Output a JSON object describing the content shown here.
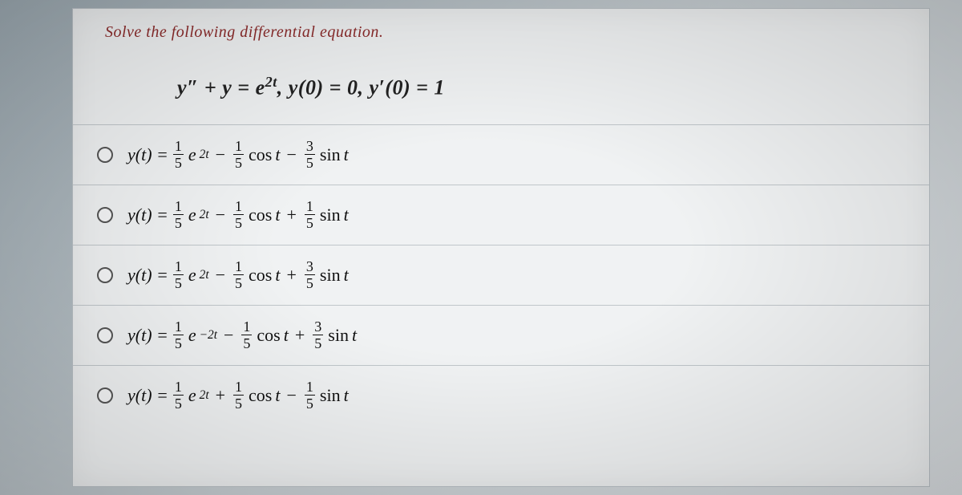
{
  "prompt": {
    "text": "Solve the following differential equation.",
    "color": "#8c2b2b",
    "font_style": "italic",
    "font_family": "Times New Roman",
    "font_size_pt": 15
  },
  "equation": {
    "latex": "y'' + y = e^{2t},   y(0) = 0,   y'(0) = 1",
    "parts": {
      "lhs": "y″ + y = e",
      "exp": "2t",
      "comma1": ",    y(0) = 0,    y′(0) = 1"
    },
    "font_size_pt": 20,
    "font_weight": "bold",
    "color": "#222222"
  },
  "options": [
    {
      "lead": "y(t) = ",
      "terms": [
        {
          "coef_num": "1",
          "coef_den": "5",
          "base": "e",
          "exp": "2t",
          "sign": ""
        },
        {
          "coef_num": "1",
          "coef_den": "5",
          "base": "cos t",
          "exp": "",
          "sign": " − "
        },
        {
          "coef_num": "3",
          "coef_den": "5",
          "base": "sin t",
          "exp": "",
          "sign": " − "
        }
      ]
    },
    {
      "lead": "y(t) = ",
      "terms": [
        {
          "coef_num": "1",
          "coef_den": "5",
          "base": "e",
          "exp": "2t",
          "sign": ""
        },
        {
          "coef_num": "1",
          "coef_den": "5",
          "base": "cos t",
          "exp": "",
          "sign": " − "
        },
        {
          "coef_num": "1",
          "coef_den": "5",
          "base": "sin t",
          "exp": "",
          "sign": " + "
        }
      ]
    },
    {
      "lead": "y(t) = ",
      "terms": [
        {
          "coef_num": "1",
          "coef_den": "5",
          "base": "e",
          "exp": "2t",
          "sign": ""
        },
        {
          "coef_num": "1",
          "coef_den": "5",
          "base": "cos t",
          "exp": "",
          "sign": " − "
        },
        {
          "coef_num": "3",
          "coef_den": "5",
          "base": "sin t",
          "exp": "",
          "sign": " + "
        }
      ]
    },
    {
      "lead": "y(t) = ",
      "terms": [
        {
          "coef_num": "1",
          "coef_den": "5",
          "base": "e",
          "exp": "−2t",
          "sign": ""
        },
        {
          "coef_num": "1",
          "coef_den": "5",
          "base": "cos t",
          "exp": "",
          "sign": " − "
        },
        {
          "coef_num": "3",
          "coef_den": "5",
          "base": "sin t",
          "exp": "",
          "sign": " + "
        }
      ]
    },
    {
      "lead": "y(t) = ",
      "terms": [
        {
          "coef_num": "1",
          "coef_den": "5",
          "base": "e",
          "exp": "2t",
          "sign": ""
        },
        {
          "coef_num": "1",
          "coef_den": "5",
          "base": "cos t",
          "exp": "",
          "sign": " + "
        },
        {
          "coef_num": "1",
          "coef_den": "5",
          "base": "sin t",
          "exp": "",
          "sign": " − "
        }
      ]
    }
  ],
  "styling": {
    "sheet_bg": "#f0f2f3",
    "sheet_border": "#b8bfc4",
    "row_border": "#c0c6ca",
    "radio_border": "#555555",
    "page_bg_gradient": [
      "#9ba8b0",
      "#c5ccd0",
      "#d8dcdf"
    ],
    "math_color": "#111111",
    "math_font_size_pt": 16
  }
}
